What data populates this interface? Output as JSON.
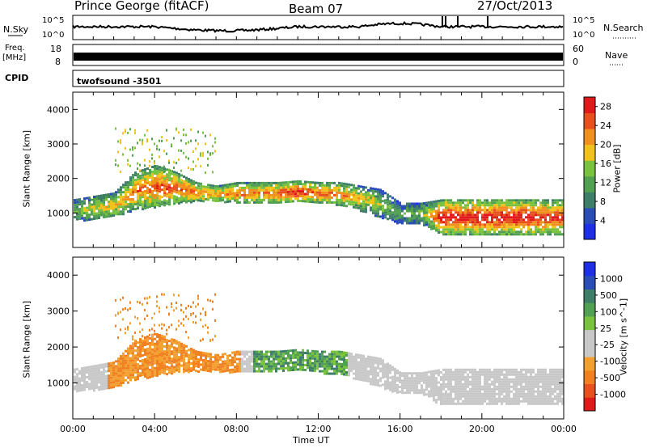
{
  "header": {
    "station": "Prince George (fitACF)",
    "beam": "Beam 07",
    "date": "27/Oct/2013"
  },
  "side_labels": {
    "nsky": "N.Sky",
    "nsky_hi": "10^5",
    "nsky_lo": "10^0",
    "nsearch": "N.Search",
    "nsearch_hi": "10^5",
    "nsearch_lo": "10^0",
    "freq": "Freq.",
    "freq_unit": "[MHz]",
    "freq_hi": "18",
    "freq_lo": "8",
    "nave": "Nave",
    "nave_hi": "60",
    "nave_lo": "0",
    "cpid": "CPID",
    "cpid_value": "twofsound -3501"
  },
  "colors": {
    "power": [
      "#1f2fe6",
      "#2a4db8",
      "#3f7f6a",
      "#52a052",
      "#79c23e",
      "#f2c21c",
      "#f0901e",
      "#e8501e",
      "#e01a1a"
    ],
    "velocity": [
      "#1f2fe6",
      "#2a4db8",
      "#3f7f6a",
      "#52a052",
      "#79c23e",
      "#c8c8c8",
      "#c8c8c8",
      "#f2a030",
      "#f08020",
      "#e8501e",
      "#e01a1a"
    ]
  },
  "chart_data": [
    {
      "type": "heatmap",
      "name": "power",
      "ylabel": "Slant Range [km]",
      "yticks": [
        "1000",
        "2000",
        "3000",
        "4000"
      ],
      "ylim": [
        0,
        4500
      ],
      "xlim": [
        0,
        24
      ],
      "colorbar": {
        "label": "Power [dB]",
        "ticks": [
          "4",
          "8",
          "12",
          "16",
          "20",
          "24",
          "28"
        ],
        "range": [
          0,
          30
        ]
      },
      "x": [
        0,
        1,
        2,
        3,
        4,
        5,
        6,
        7,
        8,
        9,
        10,
        11,
        12,
        13,
        14,
        15,
        16,
        17,
        18,
        19,
        20,
        21,
        22,
        23
      ],
      "band_lower_km": [
        800,
        820,
        900,
        1100,
        1200,
        1300,
        1350,
        1350,
        1300,
        1300,
        1300,
        1350,
        1300,
        1250,
        1100,
        900,
        700,
        700,
        400,
        400,
        400,
        400,
        400,
        400
      ],
      "band_upper_km": [
        1400,
        1500,
        1600,
        2200,
        2400,
        2200,
        1900,
        1800,
        1900,
        1900,
        1900,
        1950,
        1900,
        1900,
        1800,
        1700,
        1300,
        1300,
        1400,
        1400,
        1400,
        1400,
        1400,
        1400
      ],
      "peak_power_db": [
        14,
        18,
        20,
        24,
        26,
        26,
        24,
        22,
        24,
        24,
        26,
        28,
        26,
        24,
        20,
        16,
        12,
        14,
        30,
        30,
        30,
        30,
        30,
        28
      ]
    },
    {
      "type": "heatmap",
      "name": "velocity",
      "ylabel": "Slant Range [km]",
      "yticks": [
        "1000",
        "2000",
        "3000",
        "4000"
      ],
      "xticks": [
        "00:00",
        "04:00",
        "08:00",
        "12:00",
        "16:00",
        "20:00",
        "00:00"
      ],
      "xlabel": "Time UT",
      "ylim": [
        0,
        4500
      ],
      "xlim": [
        0,
        24
      ],
      "colorbar": {
        "label": "Velocity [m s^-1]",
        "ticks": [
          "1000",
          "500",
          "100",
          "25",
          "-25",
          "-100",
          "-500",
          "-1000"
        ]
      },
      "x": [
        0,
        1,
        2,
        3,
        4,
        5,
        6,
        7,
        8,
        9,
        10,
        11,
        12,
        13,
        14,
        15,
        16,
        17,
        18,
        19,
        20,
        21,
        22,
        23
      ],
      "band_lower_km": [
        800,
        820,
        900,
        1100,
        1200,
        1300,
        1350,
        1350,
        1300,
        1300,
        1300,
        1350,
        1300,
        1250,
        1100,
        900,
        700,
        700,
        400,
        400,
        400,
        400,
        400,
        400
      ],
      "band_upper_km": [
        1400,
        1500,
        1600,
        2200,
        2400,
        2200,
        1900,
        1800,
        1900,
        1900,
        1900,
        1950,
        1900,
        1900,
        1800,
        1700,
        1300,
        1300,
        1400,
        1400,
        1400,
        1400,
        1400,
        1400
      ],
      "mean_velocity_ms": [
        0,
        0,
        -50,
        -150,
        -200,
        -100,
        -80,
        -60,
        -40,
        50,
        80,
        100,
        60,
        50,
        0,
        0,
        0,
        0,
        0,
        0,
        0,
        0,
        0,
        0
      ]
    }
  ]
}
